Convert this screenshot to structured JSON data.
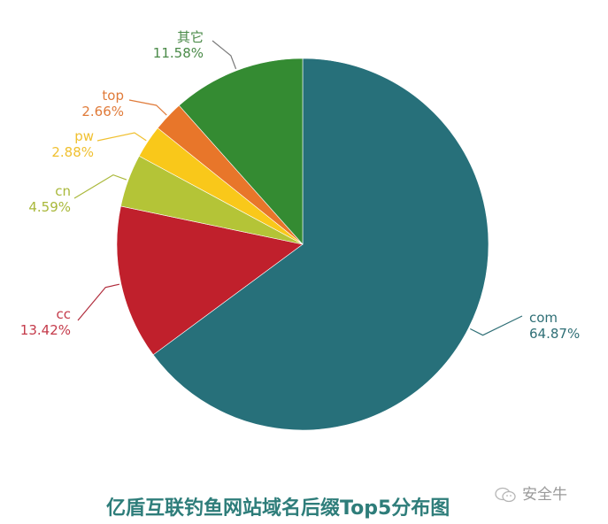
{
  "chart_data": {
    "type": "pie",
    "title": "亿盾互联钓鱼网站域名后缀Top5分布图",
    "start_angle": "12 o'clock, clockwise",
    "categories": [
      "com",
      "cc",
      "cn",
      "pw",
      "top",
      "其它"
    ],
    "values": [
      64.87,
      13.42,
      4.59,
      2.88,
      2.66,
      11.58
    ],
    "labels": [
      "64.87%",
      "13.42%",
      "4.59%",
      "2.88%",
      "2.66%",
      "11.58%"
    ],
    "colors": [
      "#27707a",
      "#c0202c",
      "#b4c437",
      "#f9c81a",
      "#e8762a",
      "#348b32"
    ],
    "legend": "none (leader-line labels)"
  },
  "slices": [
    {
      "name": "com",
      "pct": "64.87%",
      "color": "#27707a"
    },
    {
      "name": "cc",
      "pct": "13.42%",
      "color": "#c0202c"
    },
    {
      "name": "cn",
      "pct": "4.59%",
      "color": "#b4c437"
    },
    {
      "name": "pw",
      "pct": "2.88%",
      "color": "#f9c81a"
    },
    {
      "name": "top",
      "pct": "2.66%",
      "color": "#e8762a"
    },
    {
      "name": "其它",
      "pct": "11.58%",
      "color": "#348b32"
    }
  ],
  "title": "亿盾互联钓鱼网站域名后缀Top5分布图",
  "watermark": "安全牛"
}
